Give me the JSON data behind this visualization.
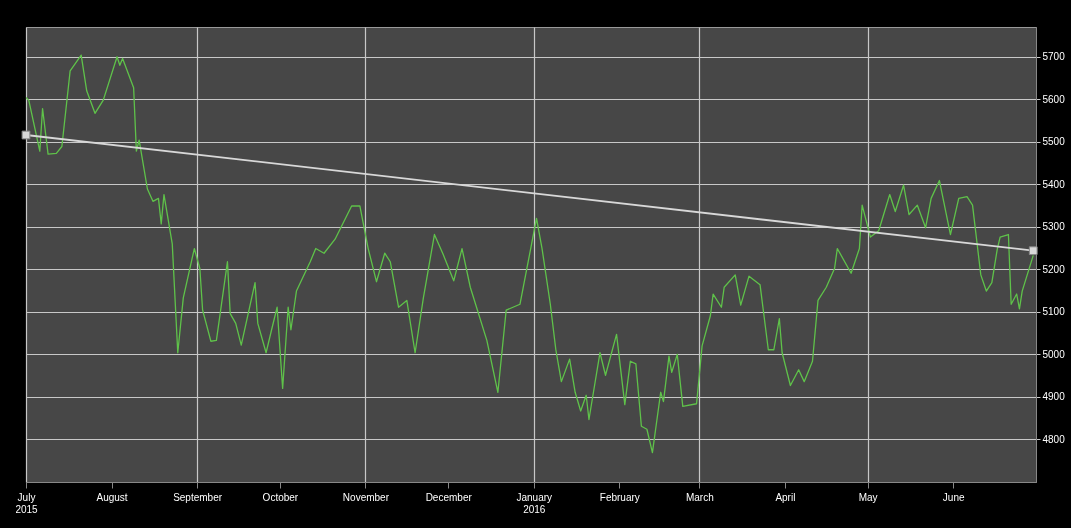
{
  "chart_data": {
    "type": "line",
    "xlim": [
      "2015-07-01",
      "2016-07-01"
    ],
    "ylim": [
      4700,
      5770
    ],
    "xticks": [
      {
        "value": "2015-07-01",
        "label": "July\n2015"
      },
      {
        "value": "2015-08-01",
        "label": "August"
      },
      {
        "value": "2015-09-01",
        "label": "September"
      },
      {
        "value": "2015-10-01",
        "label": "October"
      },
      {
        "value": "2015-11-01",
        "label": "November"
      },
      {
        "value": "2015-12-01",
        "label": "December"
      },
      {
        "value": "2016-01-01",
        "label": "January\n2016"
      },
      {
        "value": "2016-02-01",
        "label": "February"
      },
      {
        "value": "2016-03-01",
        "label": "March"
      },
      {
        "value": "2016-04-01",
        "label": "April"
      },
      {
        "value": "2016-05-01",
        "label": "May"
      },
      {
        "value": "2016-06-01",
        "label": "June"
      }
    ],
    "yticks": [
      4800,
      4900,
      5000,
      5100,
      5200,
      5300,
      5400,
      5500,
      5600,
      5700
    ],
    "grid": true,
    "marker": "none",
    "line_style": "solid",
    "series": [
      {
        "color": "#5fc24a",
        "x": [
          "2015-07-01",
          "2015-07-02",
          "2015-07-06",
          "2015-07-07",
          "2015-07-09",
          "2015-07-12",
          "2015-07-14",
          "2015-07-17",
          "2015-07-21",
          "2015-07-23",
          "2015-07-26",
          "2015-07-29",
          "2015-08-03",
          "2015-08-04",
          "2015-08-05",
          "2015-08-09",
          "2015-08-10",
          "2015-08-11",
          "2015-08-14",
          "2015-08-16",
          "2015-08-18",
          "2015-08-19",
          "2015-08-20",
          "2015-08-23",
          "2015-08-25",
          "2015-08-27",
          "2015-08-31",
          "2015-09-02",
          "2015-09-03",
          "2015-09-06",
          "2015-09-08",
          "2015-09-12",
          "2015-09-13",
          "2015-09-15",
          "2015-09-17",
          "2015-09-22",
          "2015-09-23",
          "2015-09-26",
          "2015-09-28",
          "2015-09-30",
          "2015-10-02",
          "2015-10-04",
          "2015-10-05",
          "2015-10-07",
          "2015-10-12",
          "2015-10-14",
          "2015-10-17",
          "2015-10-21",
          "2015-10-27",
          "2015-10-30",
          "2015-11-02",
          "2015-11-05",
          "2015-11-08",
          "2015-11-10",
          "2015-11-13",
          "2015-11-16",
          "2015-11-19",
          "2015-11-22",
          "2015-11-26",
          "2015-11-29",
          "2015-12-03",
          "2015-12-06",
          "2015-12-09",
          "2015-12-15",
          "2015-12-19",
          "2015-12-22",
          "2015-12-27",
          "2016-01-02",
          "2016-01-04",
          "2016-01-07",
          "2016-01-09",
          "2016-01-11",
          "2016-01-14",
          "2016-01-16",
          "2016-01-18",
          "2016-01-20",
          "2016-01-21",
          "2016-01-25",
          "2016-01-27",
          "2016-01-31",
          "2016-02-03",
          "2016-02-05",
          "2016-02-07",
          "2016-02-09",
          "2016-02-11",
          "2016-02-13",
          "2016-02-16",
          "2016-02-17",
          "2016-02-19",
          "2016-02-20",
          "2016-02-22",
          "2016-02-24",
          "2016-02-29",
          "2016-03-02",
          "2016-03-05",
          "2016-03-06",
          "2016-03-09",
          "2016-03-10",
          "2016-03-14",
          "2016-03-16",
          "2016-03-19",
          "2016-03-23",
          "2016-03-26",
          "2016-03-28",
          "2016-03-30",
          "2016-03-31",
          "2016-04-03",
          "2016-04-06",
          "2016-04-08",
          "2016-04-11",
          "2016-04-13",
          "2016-04-16",
          "2016-04-19",
          "2016-04-20",
          "2016-04-25",
          "2016-04-28",
          "2016-04-29",
          "2016-05-02",
          "2016-05-05",
          "2016-05-09",
          "2016-05-11",
          "2016-05-14",
          "2016-05-16",
          "2016-05-19",
          "2016-05-22",
          "2016-05-24",
          "2016-05-27",
          "2016-05-31",
          "2016-06-03",
          "2016-06-06",
          "2016-06-08",
          "2016-06-11",
          "2016-06-13",
          "2016-06-15",
          "2016-06-17",
          "2016-06-18",
          "2016-06-21",
          "2016-06-22",
          "2016-06-24",
          "2016-06-25",
          "2016-06-26",
          "2016-06-30"
        ],
        "values": [
          5604,
          5598,
          5478,
          5578,
          5471,
          5473,
          5489,
          5667,
          5704,
          5620,
          5567,
          5598,
          5700,
          5680,
          5696,
          5627,
          5478,
          5504,
          5389,
          5360,
          5367,
          5307,
          5376,
          5260,
          5004,
          5133,
          5249,
          5202,
          5104,
          5031,
          5033,
          5218,
          5096,
          5073,
          5022,
          5169,
          5073,
          5004,
          5058,
          5111,
          4920,
          5111,
          5058,
          5149,
          5218,
          5249,
          5238,
          5271,
          5349,
          5349,
          5249,
          5171,
          5238,
          5218,
          5111,
          5127,
          5004,
          5133,
          5282,
          5238,
          5173,
          5249,
          5158,
          5033,
          4911,
          5104,
          5118,
          5320,
          5249,
          5118,
          5011,
          4936,
          4989,
          4911,
          4867,
          4904,
          4847,
          5004,
          4951,
          5047,
          4882,
          4984,
          4978,
          4831,
          4824,
          4769,
          4911,
          4889,
          4996,
          4958,
          5000,
          4878,
          4884,
          5020,
          5091,
          5142,
          5111,
          5158,
          5187,
          5116,
          5184,
          5164,
          5011,
          5011,
          5084,
          5004,
          4927,
          4964,
          4936,
          4984,
          5127,
          5158,
          5202,
          5249,
          5191,
          5249,
          5351,
          5276,
          5291,
          5376,
          5336,
          5398,
          5329,
          5351,
          5298,
          5367,
          5409,
          5282,
          5367,
          5371,
          5351,
          5187,
          5149,
          5169,
          5249,
          5276,
          5282,
          5118,
          5142,
          5107,
          5149,
          5233
        ]
      },
      {
        "type": "line",
        "color": "#d8d8d8",
        "marker": "square",
        "x": [
          "2015-07-01",
          "2016-06-30"
        ],
        "values": [
          5516,
          5244
        ]
      }
    ]
  }
}
